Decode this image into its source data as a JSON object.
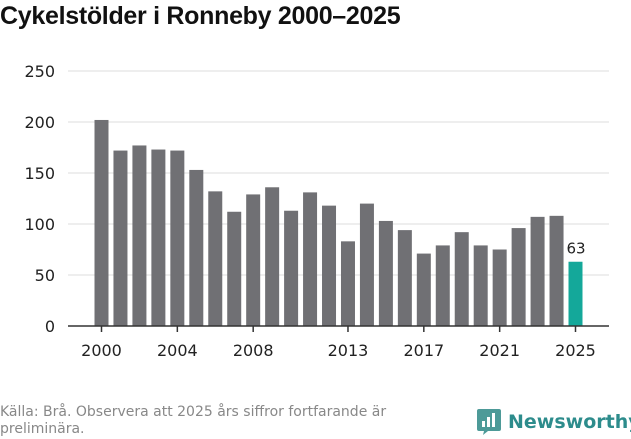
{
  "title": "Cykelstölder i Ronneby 2000–2025",
  "chart_data": {
    "type": "bar",
    "title": "Cykelstölder i Ronneby 2000–2025",
    "xlabel": "",
    "ylabel": "",
    "ylim": [
      0,
      250
    ],
    "yticks": [
      0,
      50,
      100,
      150,
      200,
      250
    ],
    "xtick_labels": [
      "2000",
      "2004",
      "2008",
      "2013",
      "2017",
      "2021",
      "2025"
    ],
    "categories": [
      "2000",
      "2001",
      "2002",
      "2003",
      "2004",
      "2005",
      "2006",
      "2007",
      "2008",
      "2009",
      "2010",
      "2011",
      "2012",
      "2013",
      "2014",
      "2015",
      "2016",
      "2017",
      "2018",
      "2019",
      "2020",
      "2021",
      "2022",
      "2023",
      "2024",
      "2025"
    ],
    "values": [
      202,
      172,
      177,
      173,
      172,
      153,
      132,
      112,
      129,
      136,
      113,
      131,
      118,
      83,
      120,
      103,
      94,
      71,
      79,
      92,
      79,
      75,
      96,
      107,
      108,
      63
    ],
    "highlight": {
      "category": "2025",
      "label": "63",
      "color": "#14a89a"
    },
    "bar_color": "#707074",
    "grid": true
  },
  "source": "Källa: Brå. Observera att 2025 års siffror fortfarande är preliminära.",
  "logo": {
    "text": "Newsworthy",
    "color": "#2d8c8c"
  }
}
